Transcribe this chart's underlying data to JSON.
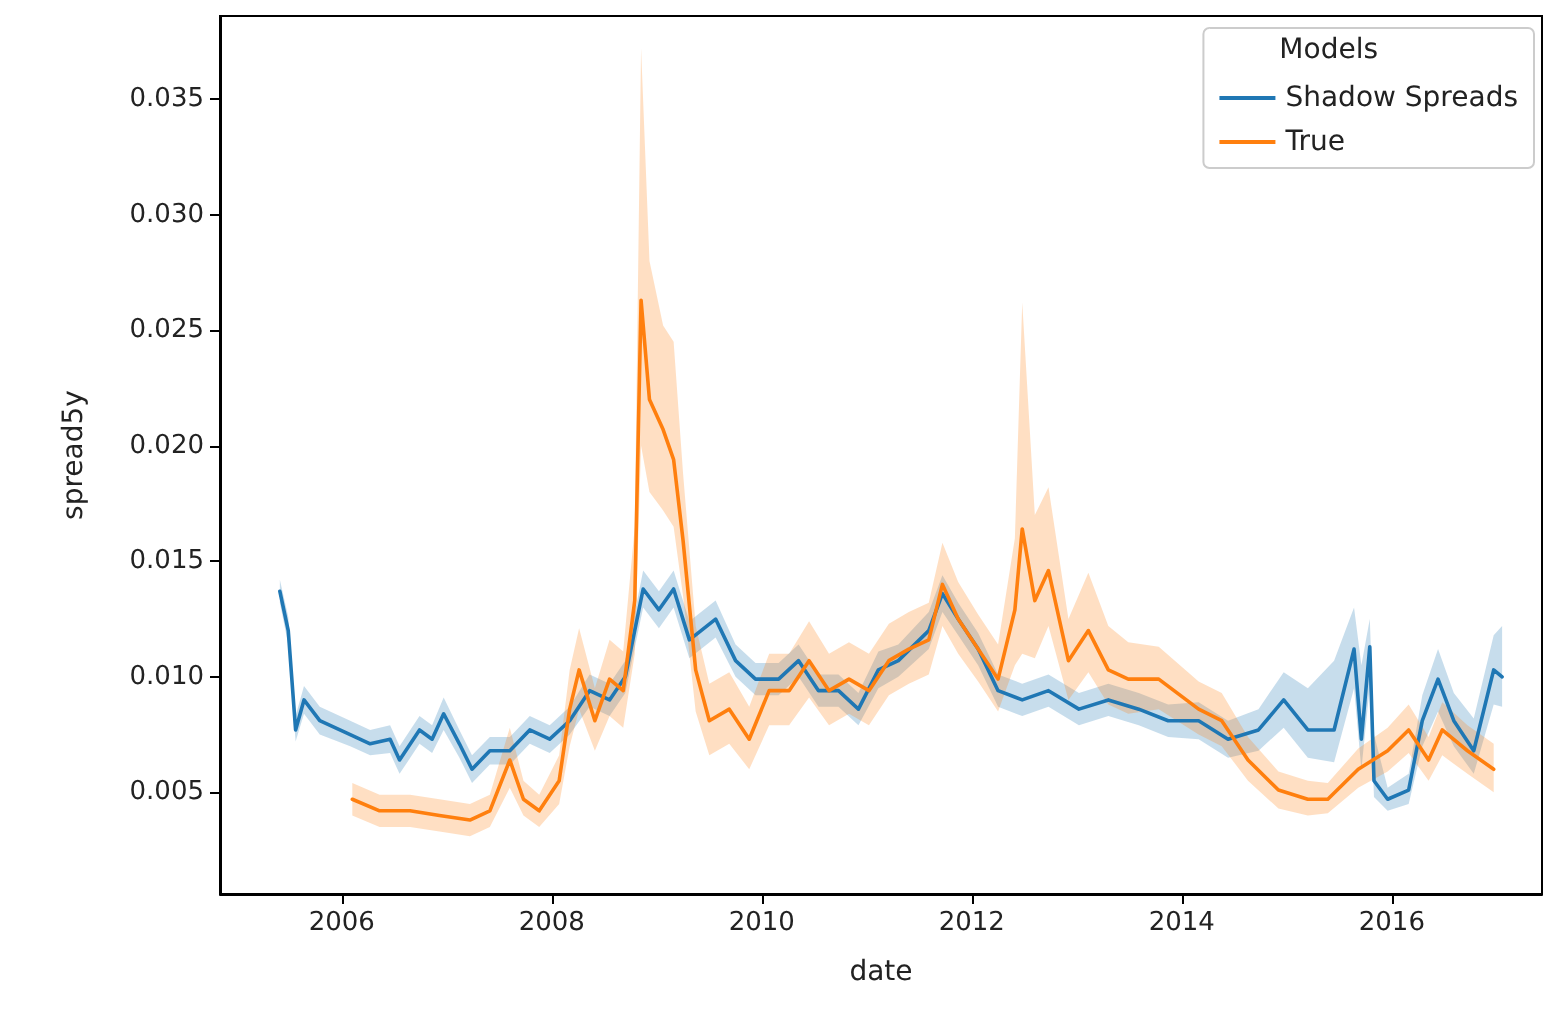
{
  "chart_data": {
    "type": "line",
    "xlabel": "date",
    "ylabel": "spread5y",
    "legend_title": "Models",
    "legend": "top right",
    "grid": false,
    "marker": "none",
    "line_style": "solid",
    "xlim": [
      2004.84,
      2017.43
    ],
    "xticks": [
      2006,
      2008,
      2010,
      2012,
      2014,
      2016
    ],
    "ylim": [
      0.0006,
      0.0386
    ],
    "yticks": [
      0.005,
      {
        "value": 0.01,
        "label": "0.010"
      },
      0.015,
      {
        "value": 0.02,
        "label": "0.020"
      },
      0.025,
      {
        "value": 0.03,
        "label": "0.030"
      },
      0.035
    ],
    "series": [
      {
        "name": "Shadow Spreads",
        "color": "#1f77b4",
        "x": [
          2005.41,
          2005.49,
          2005.56,
          2005.64,
          2005.79,
          2006.08,
          2006.27,
          2006.46,
          2006.55,
          2006.74,
          2006.86,
          2006.97,
          2007.12,
          2007.24,
          2007.41,
          2007.6,
          2007.79,
          2007.98,
          2008.17,
          2008.36,
          2008.55,
          2008.7,
          2008.87,
          2009.02,
          2009.16,
          2009.31,
          2009.56,
          2009.75,
          2009.94,
          2010.16,
          2010.35,
          2010.54,
          2010.73,
          2010.92,
          2011.11,
          2011.3,
          2011.59,
          2011.72,
          2011.87,
          2012.06,
          2012.25,
          2012.48,
          2012.73,
          2013.02,
          2013.3,
          2013.59,
          2013.87,
          2014.16,
          2014.44,
          2014.73,
          2014.97,
          2015.2,
          2015.45,
          2015.64,
          2015.71,
          2015.79,
          2015.83,
          2015.96,
          2016.16,
          2016.29,
          2016.44,
          2016.59,
          2016.78,
          2016.97,
          2017.05
        ],
        "values": [
          0.0137,
          0.012,
          0.0077,
          0.009,
          0.0081,
          0.0075,
          0.0071,
          0.0073,
          0.0064,
          0.0077,
          0.0073,
          0.0084,
          0.0071,
          0.006,
          0.0068,
          0.0068,
          0.0077,
          0.0073,
          0.0081,
          0.0094,
          0.009,
          0.01,
          0.0138,
          0.0129,
          0.0138,
          0.0116,
          0.0125,
          0.0107,
          0.0099,
          0.0099,
          0.0107,
          0.0094,
          0.0094,
          0.0086,
          0.0103,
          0.0107,
          0.012,
          0.0136,
          0.0125,
          0.0112,
          0.0094,
          0.009,
          0.0094,
          0.0086,
          0.009,
          0.0086,
          0.0081,
          0.0081,
          0.0073,
          0.0077,
          0.009,
          0.0077,
          0.0077,
          0.0112,
          0.0073,
          0.0113,
          0.0055,
          0.0047,
          0.0051,
          0.0081,
          0.0099,
          0.0081,
          0.0068,
          0.0103,
          0.01
        ],
        "lower": [
          0.0132,
          0.0114,
          0.0072,
          0.0084,
          0.0075,
          0.007,
          0.0066,
          0.0067,
          0.0058,
          0.0071,
          0.0067,
          0.0077,
          0.0065,
          0.0054,
          0.0062,
          0.0062,
          0.0071,
          0.0067,
          0.0075,
          0.0087,
          0.0083,
          0.0093,
          0.013,
          0.0121,
          0.013,
          0.0108,
          0.0117,
          0.01,
          0.0092,
          0.0092,
          0.01,
          0.0087,
          0.0087,
          0.0079,
          0.0095,
          0.01,
          0.0112,
          0.0128,
          0.0118,
          0.0105,
          0.0087,
          0.0083,
          0.0087,
          0.0079,
          0.0083,
          0.0079,
          0.0074,
          0.0073,
          0.0065,
          0.0068,
          0.0078,
          0.0065,
          0.0063,
          0.0095,
          0.006,
          0.0096,
          0.0048,
          0.0042,
          0.0045,
          0.007,
          0.0085,
          0.007,
          0.0058,
          0.0088,
          0.0087
        ],
        "upper": [
          0.0142,
          0.0126,
          0.0083,
          0.0096,
          0.0087,
          0.0081,
          0.0077,
          0.0079,
          0.007,
          0.0083,
          0.0079,
          0.0091,
          0.0077,
          0.0066,
          0.0074,
          0.0074,
          0.0083,
          0.0079,
          0.0087,
          0.0101,
          0.0097,
          0.0107,
          0.0146,
          0.0137,
          0.0146,
          0.0124,
          0.0133,
          0.0114,
          0.0106,
          0.0106,
          0.0114,
          0.0101,
          0.0101,
          0.0093,
          0.0111,
          0.0114,
          0.0128,
          0.0144,
          0.0132,
          0.0119,
          0.0101,
          0.0097,
          0.0101,
          0.0093,
          0.0097,
          0.0093,
          0.0088,
          0.0089,
          0.0081,
          0.0086,
          0.0102,
          0.0095,
          0.0107,
          0.013,
          0.0105,
          0.0125,
          0.0075,
          0.0052,
          0.0058,
          0.0092,
          0.0112,
          0.0093,
          0.0082,
          0.0118,
          0.0122
        ]
      },
      {
        "name": "True",
        "color": "#ff7f0e",
        "x": [
          2006.1,
          2006.36,
          2006.65,
          2006.93,
          2007.22,
          2007.41,
          2007.6,
          2007.73,
          2007.88,
          2008.07,
          2008.17,
          2008.26,
          2008.41,
          2008.55,
          2008.68,
          2008.79,
          2008.85,
          2008.93,
          2009.06,
          2009.16,
          2009.25,
          2009.37,
          2009.5,
          2009.69,
          2009.88,
          2010.07,
          2010.26,
          2010.45,
          2010.64,
          2010.83,
          2011.02,
          2011.21,
          2011.4,
          2011.59,
          2011.72,
          2011.87,
          2012.06,
          2012.25,
          2012.41,
          2012.48,
          2012.6,
          2012.73,
          2012.92,
          2013.11,
          2013.3,
          2013.49,
          2013.78,
          2014.16,
          2014.38,
          2014.63,
          2014.92,
          2015.2,
          2015.39,
          2015.68,
          2015.96,
          2016.16,
          2016.35,
          2016.48,
          2016.72,
          2016.97
        ],
        "values": [
          0.0047,
          0.0042,
          0.0042,
          0.004,
          0.0038,
          0.0042,
          0.0064,
          0.0047,
          0.0042,
          0.0055,
          0.0086,
          0.0103,
          0.0081,
          0.0099,
          0.0094,
          0.0133,
          0.0263,
          0.022,
          0.0207,
          0.0194,
          0.0159,
          0.0103,
          0.0081,
          0.0086,
          0.0073,
          0.0094,
          0.0094,
          0.0107,
          0.0094,
          0.0099,
          0.0094,
          0.0107,
          0.0112,
          0.0116,
          0.014,
          0.0125,
          0.0112,
          0.0099,
          0.0129,
          0.0164,
          0.0133,
          0.0146,
          0.0107,
          0.012,
          0.0103,
          0.0099,
          0.0099,
          0.0086,
          0.0081,
          0.0064,
          0.0051,
          0.0047,
          0.0047,
          0.006,
          0.0068,
          0.0077,
          0.0064,
          0.0077,
          0.0068,
          0.006
        ],
        "lower": [
          0.004,
          0.0035,
          0.0035,
          0.0033,
          0.0031,
          0.0035,
          0.0052,
          0.004,
          0.0035,
          0.0045,
          0.007,
          0.0086,
          0.0068,
          0.0083,
          0.0078,
          0.011,
          0.02,
          0.018,
          0.0172,
          0.0165,
          0.0135,
          0.0085,
          0.0066,
          0.0071,
          0.006,
          0.0079,
          0.0079,
          0.0091,
          0.0079,
          0.0084,
          0.0079,
          0.0092,
          0.0097,
          0.0101,
          0.0122,
          0.011,
          0.0098,
          0.0085,
          0.0105,
          0.011,
          0.0108,
          0.0122,
          0.009,
          0.0102,
          0.0088,
          0.0084,
          0.0086,
          0.0075,
          0.007,
          0.0055,
          0.0043,
          0.004,
          0.0041,
          0.0052,
          0.0059,
          0.0067,
          0.0055,
          0.0066,
          0.0058,
          0.005
        ],
        "upper": [
          0.0054,
          0.0049,
          0.0049,
          0.0047,
          0.0045,
          0.0049,
          0.0078,
          0.0055,
          0.0049,
          0.0066,
          0.0103,
          0.0121,
          0.0095,
          0.0116,
          0.0111,
          0.0165,
          0.0372,
          0.028,
          0.0252,
          0.0245,
          0.0188,
          0.0122,
          0.0097,
          0.0102,
          0.0087,
          0.011,
          0.011,
          0.0124,
          0.011,
          0.0115,
          0.011,
          0.0123,
          0.0128,
          0.0132,
          0.0158,
          0.0141,
          0.0127,
          0.0114,
          0.016,
          0.0262,
          0.017,
          0.0182,
          0.0125,
          0.0145,
          0.0122,
          0.0115,
          0.0113,
          0.0098,
          0.0093,
          0.0074,
          0.0059,
          0.0055,
          0.0054,
          0.0069,
          0.0078,
          0.0088,
          0.0074,
          0.0089,
          0.0079,
          0.0071
        ]
      }
    ]
  }
}
